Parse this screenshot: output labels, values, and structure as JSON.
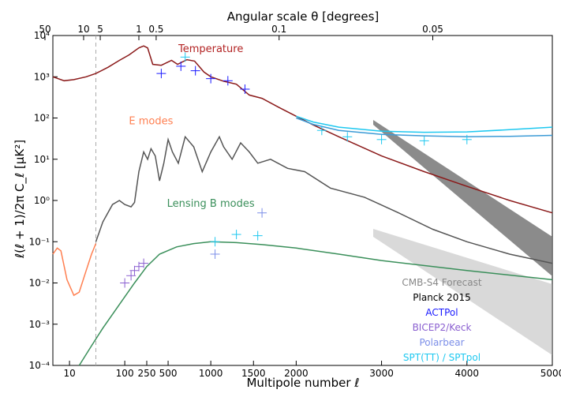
{
  "chart_data": {
    "type": "line",
    "title": "",
    "xlabel": "Multipole number ℓ",
    "ylabel": "ℓ(ℓ + 1)/2π C_ℓ [μK²]",
    "top_axis_label": "Angular scale θ [degrees]",
    "x_scale": "log below ℓ=250, linear above",
    "y_scale": "log",
    "xlim": [
      5,
      5000
    ],
    "ylim": [
      0.0001,
      10000
    ],
    "x_ticks": [
      "10",
      "100",
      "250",
      "500",
      "1000",
      "1500",
      "2000",
      "3000",
      "4000",
      "5000"
    ],
    "x_tick_values": [
      10,
      100,
      250,
      500,
      1000,
      1500,
      2000,
      3000,
      4000,
      5000
    ],
    "y_ticks": [
      "10⁻⁴",
      "10⁻³",
      "10⁻²",
      "10⁻¹",
      "10⁰",
      "10¹",
      "10²",
      "10³",
      "10⁴"
    ],
    "y_tick_values": [
      0.0001,
      0.001,
      0.01,
      0.1,
      1,
      10,
      100,
      1000,
      10000
    ],
    "top_ticks": [
      "50",
      "10",
      "5",
      "1",
      "0.5",
      "0.1",
      "0.05"
    ],
    "top_tick_ell": [
      3.6,
      18,
      36,
      180,
      360,
      1800,
      3600
    ],
    "grid": false,
    "vline_ell": 30,
    "annotations": [
      {
        "text": "Temperature",
        "color": "#b22222",
        "ell": 1000,
        "y": 4000
      },
      {
        "text": "E modes",
        "color": "#ff7f50",
        "ell": 300,
        "y": 70
      },
      {
        "text": "Lensing B modes",
        "color": "#3a8f5a",
        "ell": 1000,
        "y": 0.7
      }
    ],
    "legend_location": "lower-right",
    "legend": [
      {
        "label": "CMB-S4 Forecast",
        "color": "#888888"
      },
      {
        "label": "Planck 2015",
        "color": "#000000"
      },
      {
        "label": "ACTPol",
        "color": "#1a1aff"
      },
      {
        "label": "BICEP2/Keck",
        "color": "#8a5fd0"
      },
      {
        "label": "Polarbear",
        "color": "#7b8ee8"
      },
      {
        "label": "SPT(TT) / SPTpol",
        "color": "#1ec8f0"
      }
    ],
    "series": [
      {
        "color": "#8b1a1a",
        "x": [
          5,
          8,
          12,
          20,
          30,
          50,
          80,
          120,
          180,
          220,
          260,
          320,
          420,
          540,
          610,
          720,
          810,
          920,
          1000,
          1150,
          1300,
          1450,
          1600,
          1800,
          2000,
          2200,
          2500,
          3000,
          3500,
          4000,
          4500,
          5000
        ],
        "values": [
          1000,
          800,
          850,
          1000,
          1200,
          1700,
          2500,
          3400,
          5000,
          5600,
          5000,
          2000,
          1900,
          2500,
          2000,
          2600,
          2400,
          1300,
          1000,
          780,
          660,
          360,
          300,
          180,
          110,
          68,
          35,
          12,
          5,
          2.2,
          1,
          0.5
        ]
      },
      {
        "color": "#3c9bd6",
        "x": [
          2000,
          2200,
          2500,
          3000,
          3500,
          4000,
          4500,
          5000
        ],
        "values": [
          100,
          70,
          50,
          40,
          37,
          35,
          36,
          38
        ]
      },
      {
        "color": "#1ec8f0",
        "x": [
          2000,
          2200,
          2500,
          3000,
          3500,
          4000,
          4500,
          5000
        ],
        "values": [
          110,
          80,
          60,
          48,
          45,
          46,
          52,
          60
        ]
      },
      {
        "color": "#ff7f50",
        "x": [
          5,
          6,
          7,
          9,
          12,
          15,
          20,
          25,
          30
        ],
        "values": [
          0.05,
          0.07,
          0.06,
          0.012,
          0.005,
          0.006,
          0.02,
          0.05,
          0.09
        ]
      },
      {
        "color": "#555555",
        "x": [
          30,
          40,
          60,
          80,
          100,
          130,
          150,
          180,
          220,
          260,
          300,
          350,
          400,
          450,
          500,
          550,
          620,
          700,
          800,
          900,
          1000,
          1100,
          1150,
          1250,
          1350,
          1450,
          1550,
          1700,
          1900,
          2100,
          2400,
          2800,
          3200,
          3600,
          4000,
          4500,
          5000
        ],
        "values": [
          0.1,
          0.3,
          0.8,
          1.0,
          0.8,
          0.7,
          0.9,
          5,
          15,
          10,
          18,
          12,
          3,
          8,
          30,
          15,
          8,
          35,
          20,
          5,
          15,
          35,
          20,
          10,
          25,
          15,
          8,
          10,
          6,
          5,
          2,
          1.2,
          0.5,
          0.2,
          0.1,
          0.05,
          0.03
        ]
      },
      {
        "color": "#3a8f5a",
        "x": [
          15,
          25,
          40,
          80,
          150,
          250,
          400,
          600,
          800,
          1000,
          1300,
          1600,
          2000,
          2500,
          3000,
          4000,
          5000
        ],
        "values": [
          0.0001,
          0.0003,
          0.0008,
          0.003,
          0.01,
          0.025,
          0.05,
          0.075,
          0.09,
          0.1,
          0.095,
          0.085,
          0.07,
          0.05,
          0.035,
          0.02,
          0.012
        ]
      }
    ],
    "data_points": [
      {
        "color": "#1a1aff",
        "x": [
          420,
          650,
          820,
          1000,
          1200,
          1400
        ],
        "values": [
          1200,
          1800,
          1400,
          900,
          800,
          500
        ]
      },
      {
        "color": "#1ec8f0",
        "x": [
          700,
          1050,
          1300,
          1550,
          2300,
          2600,
          3000,
          3500,
          4000
        ],
        "values": [
          3000,
          0.1,
          0.15,
          0.14,
          50,
          35,
          30,
          28,
          30
        ]
      },
      {
        "color": "#7b8ee8",
        "x": [
          1050,
          1600
        ],
        "values": [
          0.05,
          0.5
        ]
      },
      {
        "color": "#8a5fd0",
        "x": [
          100,
          130,
          150,
          180,
          220
        ],
        "values": [
          0.01,
          0.015,
          0.02,
          0.025,
          0.03
        ]
      }
    ]
  }
}
